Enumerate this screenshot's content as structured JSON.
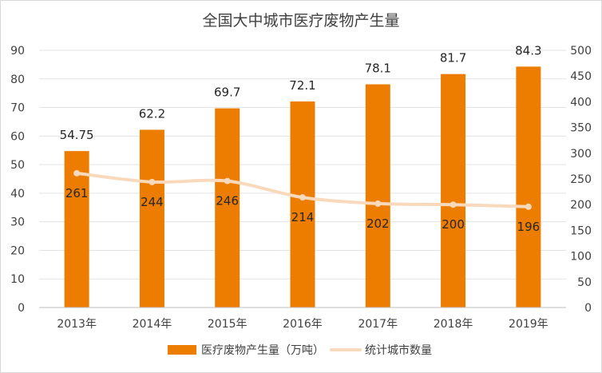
{
  "chart_data": {
    "type": "bar",
    "title": "全国大中城市医疗废物产生量",
    "categories": [
      "2013年",
      "2014年",
      "2015年",
      "2016年",
      "2017年",
      "2018年",
      "2019年"
    ],
    "series": [
      {
        "name": "医疗废物产生量（万吨）",
        "type": "bar",
        "axis": "left",
        "values": [
          54.75,
          62.2,
          69.7,
          72.1,
          78.1,
          81.7,
          84.3
        ],
        "labels": [
          "54.75",
          "62.2",
          "69.7",
          "72.1",
          "78.1",
          "81.7",
          "84.3"
        ],
        "color": "#ED7D00"
      },
      {
        "name": "统计城市数量",
        "type": "line",
        "axis": "right",
        "values": [
          261,
          244,
          246,
          214,
          202,
          200,
          196
        ],
        "labels": [
          "261",
          "244",
          "246",
          "214",
          "202",
          "200",
          "196"
        ],
        "color": "#F8D9BC"
      }
    ],
    "y_left": {
      "min": 0,
      "max": 90,
      "ticks": [
        "0",
        "10",
        "20",
        "30",
        "40",
        "50",
        "60",
        "70",
        "80",
        "90"
      ]
    },
    "y_right": {
      "min": 0,
      "max": 500,
      "ticks": [
        "0",
        "50",
        "100",
        "150",
        "200",
        "250",
        "300",
        "350",
        "400",
        "450",
        "500"
      ]
    },
    "grid": true,
    "legend_position": "bottom"
  }
}
